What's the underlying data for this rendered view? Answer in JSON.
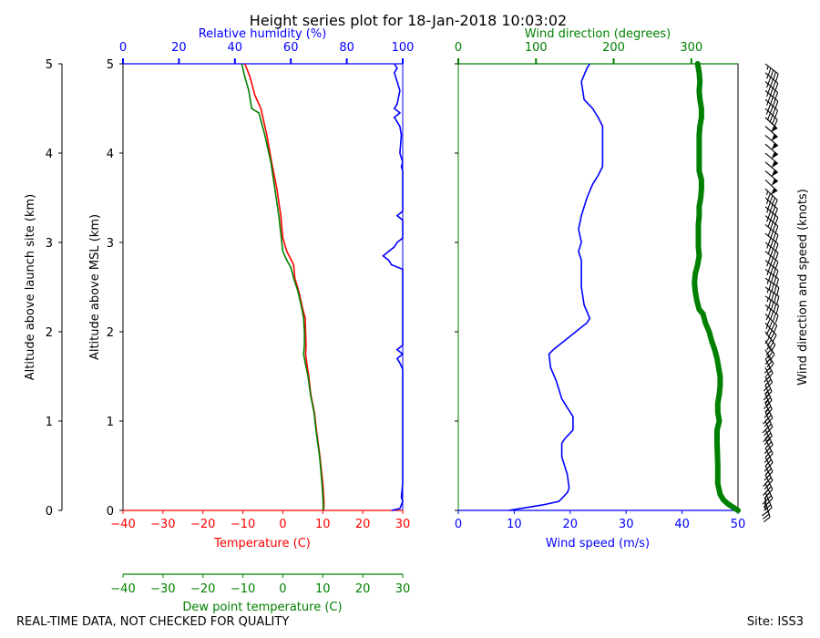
{
  "title": "Height series plot for 18-Jan-2018 10:03:02",
  "footer": {
    "left": "REAL-TIME DATA, NOT CHECKED FOR QUALITY",
    "right": "Site: ISS3"
  },
  "colors": {
    "temperature": "#ff0000",
    "dewpoint": "#008000",
    "humidity": "#0000ff",
    "wind_speed": "#0000ff",
    "wind_direction": "#008000",
    "barbs": "#000000"
  },
  "chart_data": [
    {
      "type": "line",
      "panel": "thermodynamics",
      "xlabel": "Temperature (C)",
      "x2label": "Dew point temperature (C)",
      "toplabel": "Relative humidity (%)",
      "ylabel_left": "Altitude above launch site (km)",
      "ylabel": "Altitude above MSL (km)",
      "xlim": [
        -40,
        30
      ],
      "toplim": [
        0,
        100
      ],
      "ylim": [
        0,
        5
      ],
      "xticks": [
        "−40",
        "−30",
        "−20",
        "−10",
        "0",
        "10",
        "20",
        "30"
      ],
      "topticks": [
        "0",
        "20",
        "40",
        "60",
        "80",
        "100"
      ],
      "yticks": [
        "0",
        "1",
        "2",
        "3",
        "4",
        "5"
      ],
      "series": [
        {
          "name": "Temperature (C)",
          "axis": "bottom",
          "points": [
            [
              10.2,
              0
            ],
            [
              10.3,
              0.1
            ],
            [
              10.0,
              0.3
            ],
            [
              9.3,
              0.6
            ],
            [
              8.4,
              0.9
            ],
            [
              7.9,
              1.1
            ],
            [
              7.0,
              1.3
            ],
            [
              6.5,
              1.5
            ],
            [
              6.0,
              1.65
            ],
            [
              5.7,
              1.75
            ],
            [
              5.8,
              1.85
            ],
            [
              5.7,
              2.0
            ],
            [
              5.6,
              2.15
            ],
            [
              5.0,
              2.25
            ],
            [
              4.0,
              2.45
            ],
            [
              3.0,
              2.6
            ],
            [
              2.7,
              2.75
            ],
            [
              1.0,
              2.9
            ],
            [
              0.0,
              3.05
            ],
            [
              -0.5,
              3.3
            ],
            [
              -1.5,
              3.6
            ],
            [
              -2.8,
              3.9
            ],
            [
              -4.0,
              4.2
            ],
            [
              -5.5,
              4.5
            ],
            [
              -7.0,
              4.65
            ],
            [
              -8.2,
              4.85
            ],
            [
              -9.5,
              5.0
            ]
          ]
        },
        {
          "name": "Dew point temperature (C)",
          "axis": "bottom2",
          "points": [
            [
              10.1,
              0
            ],
            [
              10.1,
              0.1
            ],
            [
              9.8,
              0.3
            ],
            [
              9.2,
              0.6
            ],
            [
              8.3,
              0.9
            ],
            [
              7.8,
              1.1
            ],
            [
              6.9,
              1.3
            ],
            [
              6.3,
              1.5
            ],
            [
              5.6,
              1.65
            ],
            [
              5.2,
              1.75
            ],
            [
              5.4,
              1.85
            ],
            [
              5.4,
              2.0
            ],
            [
              5.2,
              2.15
            ],
            [
              4.8,
              2.25
            ],
            [
              3.8,
              2.45
            ],
            [
              2.7,
              2.6
            ],
            [
              2.0,
              2.72
            ],
            [
              1.0,
              2.8
            ],
            [
              0.0,
              2.9
            ],
            [
              -0.5,
              3.1
            ],
            [
              -1.0,
              3.3
            ],
            [
              -2.0,
              3.6
            ],
            [
              -3.0,
              3.9
            ],
            [
              -4.5,
              4.2
            ],
            [
              -6.0,
              4.45
            ],
            [
              -7.8,
              4.5
            ],
            [
              -8.5,
              4.7
            ],
            [
              -9.5,
              4.85
            ],
            [
              -10.3,
              5.0
            ]
          ]
        },
        {
          "name": "Relative humidity (%)",
          "axis": "top",
          "points": [
            [
              96,
              0
            ],
            [
              99,
              0.02
            ],
            [
              100,
              0.1
            ],
            [
              99.5,
              0.15
            ],
            [
              100,
              0.3
            ],
            [
              100,
              1.2
            ],
            [
              100,
              1.58
            ],
            [
              99,
              1.65
            ],
            [
              98,
              1.7
            ],
            [
              100,
              1.75
            ],
            [
              98,
              1.8
            ],
            [
              100,
              1.85
            ],
            [
              100,
              2.7
            ],
            [
              96,
              2.75
            ],
            [
              95,
              2.8
            ],
            [
              93,
              2.85
            ],
            [
              95,
              2.9
            ],
            [
              97,
              2.95
            ],
            [
              98,
              3.0
            ],
            [
              100,
              3.05
            ],
            [
              100,
              3.25
            ],
            [
              98,
              3.3
            ],
            [
              100,
              3.35
            ],
            [
              100,
              3.8
            ],
            [
              99.5,
              3.85
            ],
            [
              100,
              3.9
            ],
            [
              99,
              4.0
            ],
            [
              99.5,
              4.2
            ],
            [
              99,
              4.3
            ],
            [
              98,
              4.35
            ],
            [
              97,
              4.4
            ],
            [
              99,
              4.45
            ],
            [
              97,
              4.5
            ],
            [
              98,
              4.55
            ],
            [
              99,
              4.7
            ],
            [
              98,
              4.8
            ],
            [
              97,
              4.9
            ],
            [
              98,
              4.95
            ],
            [
              97,
              5.0
            ]
          ]
        }
      ]
    },
    {
      "type": "line",
      "panel": "wind",
      "xlabel": "Wind speed (m/s)",
      "toplabel": "Wind direction (degrees)",
      "y2label": "Wind direction and speed (knots)",
      "xlim": [
        0,
        50
      ],
      "toplim": [
        0,
        360
      ],
      "ylim": [
        0,
        5
      ],
      "xticks": [
        "0",
        "10",
        "20",
        "30",
        "40",
        "50"
      ],
      "topticks": [
        "0",
        "100",
        "200",
        "300"
      ],
      "series": [
        {
          "name": "Wind speed (m/s)",
          "axis": "bottom",
          "points": [
            [
              9,
              0
            ],
            [
              12,
              0.03
            ],
            [
              15,
              0.06
            ],
            [
              18,
              0.1
            ],
            [
              19.5,
              0.2
            ],
            [
              19.8,
              0.25
            ],
            [
              19.5,
              0.4
            ],
            [
              18.5,
              0.6
            ],
            [
              18.5,
              0.75
            ],
            [
              19,
              0.8
            ],
            [
              20.5,
              0.9
            ],
            [
              20.5,
              1.05
            ],
            [
              19.5,
              1.15
            ],
            [
              18.5,
              1.25
            ],
            [
              17.5,
              1.45
            ],
            [
              16.5,
              1.6
            ],
            [
              16.2,
              1.75
            ],
            [
              17,
              1.8
            ],
            [
              19,
              1.9
            ],
            [
              21,
              2.0
            ],
            [
              23,
              2.1
            ],
            [
              23.5,
              2.15
            ],
            [
              22.5,
              2.3
            ],
            [
              22,
              2.5
            ],
            [
              22,
              2.8
            ],
            [
              21.5,
              2.9
            ],
            [
              22,
              3.0
            ],
            [
              21.5,
              3.15
            ],
            [
              22,
              3.3
            ],
            [
              23,
              3.5
            ],
            [
              24,
              3.65
            ],
            [
              25,
              3.75
            ],
            [
              25.8,
              3.85
            ],
            [
              25.8,
              4.1
            ],
            [
              25.8,
              4.3
            ],
            [
              25,
              4.4
            ],
            [
              24,
              4.5
            ],
            [
              22.5,
              4.6
            ],
            [
              22,
              4.8
            ],
            [
              23,
              4.95
            ],
            [
              23.5,
              5.0
            ]
          ]
        },
        {
          "name": "Wind direction (degrees)",
          "axis": "top",
          "points": [
            [
              360,
              0
            ],
            [
              353,
              0.04
            ],
            [
              346,
              0.08
            ],
            [
              341,
              0.12
            ],
            [
              337,
              0.18
            ],
            [
              334,
              0.3
            ],
            [
              334,
              0.5
            ],
            [
              333,
              0.75
            ],
            [
              333,
              0.9
            ],
            [
              336,
              1.0
            ],
            [
              334,
              1.1
            ],
            [
              334,
              1.2
            ],
            [
              336,
              1.3
            ],
            [
              337,
              1.4
            ],
            [
              337,
              1.5
            ],
            [
              335,
              1.6
            ],
            [
              333,
              1.7
            ],
            [
              330,
              1.8
            ],
            [
              326,
              1.9
            ],
            [
              323,
              2.0
            ],
            [
              318,
              2.1
            ],
            [
              315,
              2.2
            ],
            [
              310,
              2.25
            ],
            [
              307,
              2.35
            ],
            [
              305,
              2.45
            ],
            [
              304,
              2.55
            ],
            [
              305,
              2.65
            ],
            [
              308,
              2.75
            ],
            [
              310,
              2.85
            ],
            [
              309,
              2.95
            ],
            [
              309,
              3.1
            ],
            [
              309,
              3.2
            ],
            [
              310,
              3.3
            ],
            [
              310,
              3.4
            ],
            [
              312,
              3.5
            ],
            [
              313,
              3.6
            ],
            [
              313,
              3.7
            ],
            [
              310,
              3.8
            ],
            [
              310,
              3.95
            ],
            [
              310,
              4.1
            ],
            [
              310,
              4.2
            ],
            [
              311,
              4.3
            ],
            [
              313,
              4.4
            ],
            [
              313,
              4.5
            ],
            [
              311,
              4.6
            ],
            [
              310,
              4.7
            ],
            [
              311,
              4.8
            ],
            [
              310,
              4.9
            ],
            [
              308,
              5.0
            ]
          ]
        }
      ]
    }
  ]
}
